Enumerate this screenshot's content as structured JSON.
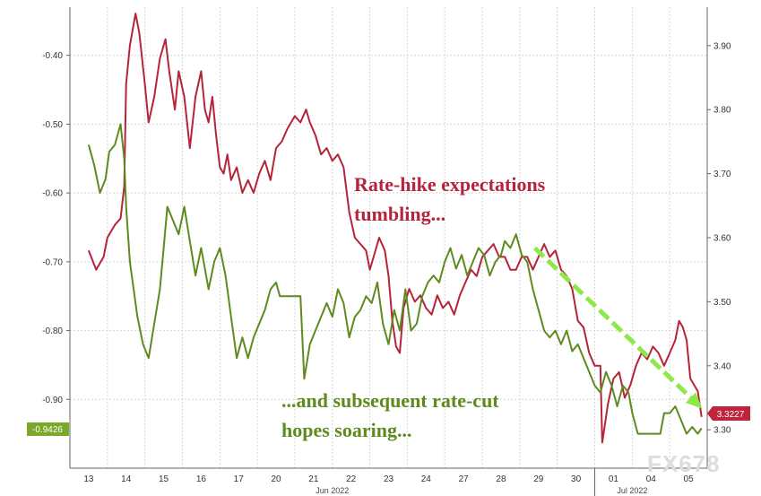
{
  "chart_data": {
    "type": "line",
    "left_axis": {
      "ticks": [
        "-0.40",
        "-0.50",
        "-0.60",
        "-0.70",
        "-0.80",
        "-0.90"
      ],
      "range": [
        -1.0,
        -0.33
      ]
    },
    "right_axis": {
      "ticks": [
        "3.90",
        "3.80",
        "3.70",
        "3.60",
        "3.50",
        "3.40",
        "3.30"
      ],
      "range": [
        3.24,
        3.96
      ]
    },
    "x_tick_labels": [
      "13",
      "14",
      "15",
      "16",
      "17",
      "20",
      "21",
      "22",
      "23",
      "24",
      "27",
      "28",
      "29",
      "30",
      "01",
      "04",
      "05"
    ],
    "month_labels": [
      "Jun 2022",
      "Jul 2022"
    ],
    "series": [
      {
        "color": "#b5243a",
        "axis": "right",
        "points": [
          [
            0,
            3.58
          ],
          [
            0.2,
            3.55
          ],
          [
            0.4,
            3.57
          ],
          [
            0.5,
            3.6
          ],
          [
            0.7,
            3.62
          ],
          [
            0.85,
            3.63
          ],
          [
            0.95,
            3.68
          ],
          [
            1.0,
            3.84
          ],
          [
            1.1,
            3.9
          ],
          [
            1.25,
            3.95
          ],
          [
            1.35,
            3.92
          ],
          [
            1.5,
            3.84
          ],
          [
            1.6,
            3.78
          ],
          [
            1.75,
            3.82
          ],
          [
            1.9,
            3.88
          ],
          [
            2.05,
            3.91
          ],
          [
            2.15,
            3.86
          ],
          [
            2.3,
            3.8
          ],
          [
            2.4,
            3.86
          ],
          [
            2.55,
            3.82
          ],
          [
            2.7,
            3.74
          ],
          [
            2.85,
            3.82
          ],
          [
            3.0,
            3.86
          ],
          [
            3.1,
            3.8
          ],
          [
            3.2,
            3.78
          ],
          [
            3.3,
            3.82
          ],
          [
            3.4,
            3.76
          ],
          [
            3.5,
            3.71
          ],
          [
            3.6,
            3.7
          ],
          [
            3.7,
            3.73
          ],
          [
            3.8,
            3.69
          ],
          [
            3.95,
            3.71
          ],
          [
            4.1,
            3.67
          ],
          [
            4.25,
            3.69
          ],
          [
            4.4,
            3.67
          ],
          [
            4.55,
            3.7
          ],
          [
            4.7,
            3.72
          ],
          [
            4.85,
            3.69
          ],
          [
            5.0,
            3.74
          ],
          [
            5.15,
            3.75
          ],
          [
            5.3,
            3.77
          ],
          [
            5.5,
            3.79
          ],
          [
            5.65,
            3.78
          ],
          [
            5.8,
            3.8
          ],
          [
            5.9,
            3.78
          ],
          [
            6.05,
            3.76
          ],
          [
            6.2,
            3.73
          ],
          [
            6.35,
            3.74
          ],
          [
            6.5,
            3.72
          ],
          [
            6.65,
            3.73
          ],
          [
            6.8,
            3.71
          ],
          [
            6.95,
            3.64
          ],
          [
            7.1,
            3.6
          ],
          [
            7.25,
            3.59
          ],
          [
            7.4,
            3.58
          ],
          [
            7.5,
            3.55
          ],
          [
            7.6,
            3.57
          ],
          [
            7.75,
            3.6
          ],
          [
            7.9,
            3.58
          ],
          [
            8.0,
            3.54
          ],
          [
            8.1,
            3.47
          ],
          [
            8.2,
            3.43
          ],
          [
            8.3,
            3.42
          ],
          [
            8.4,
            3.49
          ],
          [
            8.55,
            3.52
          ],
          [
            8.7,
            3.5
          ],
          [
            8.85,
            3.51
          ],
          [
            9.0,
            3.49
          ],
          [
            9.15,
            3.48
          ],
          [
            9.3,
            3.51
          ],
          [
            9.45,
            3.49
          ],
          [
            9.6,
            3.5
          ],
          [
            9.75,
            3.48
          ],
          [
            9.9,
            3.51
          ],
          [
            10.05,
            3.53
          ],
          [
            10.2,
            3.55
          ],
          [
            10.35,
            3.54
          ],
          [
            10.5,
            3.57
          ],
          [
            10.65,
            3.58
          ],
          [
            10.8,
            3.59
          ],
          [
            10.95,
            3.57
          ],
          [
            11.1,
            3.57
          ],
          [
            11.25,
            3.55
          ],
          [
            11.4,
            3.55
          ],
          [
            11.55,
            3.57
          ],
          [
            11.7,
            3.57
          ],
          [
            11.85,
            3.55
          ],
          [
            12.0,
            3.57
          ],
          [
            12.15,
            3.59
          ],
          [
            12.3,
            3.57
          ],
          [
            12.45,
            3.58
          ],
          [
            12.6,
            3.55
          ],
          [
            12.75,
            3.54
          ],
          [
            12.9,
            3.52
          ],
          [
            13.05,
            3.47
          ],
          [
            13.2,
            3.46
          ],
          [
            13.35,
            3.42
          ],
          [
            13.5,
            3.4
          ],
          [
            13.65,
            3.4
          ],
          [
            13.7,
            3.28
          ],
          [
            13.85,
            3.34
          ],
          [
            14.0,
            3.38
          ],
          [
            14.15,
            3.39
          ],
          [
            14.3,
            3.35
          ],
          [
            14.45,
            3.37
          ],
          [
            14.6,
            3.4
          ],
          [
            14.75,
            3.42
          ],
          [
            14.9,
            3.41
          ],
          [
            15.05,
            3.43
          ],
          [
            15.2,
            3.42
          ],
          [
            15.35,
            3.4
          ],
          [
            15.5,
            3.42
          ],
          [
            15.65,
            3.44
          ],
          [
            15.75,
            3.47
          ],
          [
            15.85,
            3.46
          ],
          [
            15.95,
            3.44
          ],
          [
            16.05,
            3.38
          ],
          [
            16.15,
            3.37
          ],
          [
            16.25,
            3.36
          ],
          [
            16.35,
            3.32
          ]
        ]
      },
      {
        "color": "#5f8a1e",
        "axis": "left",
        "points": [
          [
            0,
            -0.53
          ],
          [
            0.15,
            -0.56
          ],
          [
            0.3,
            -0.6
          ],
          [
            0.45,
            -0.58
          ],
          [
            0.55,
            -0.54
          ],
          [
            0.7,
            -0.53
          ],
          [
            0.85,
            -0.5
          ],
          [
            0.95,
            -0.55
          ],
          [
            1.0,
            -0.62
          ],
          [
            1.1,
            -0.7
          ],
          [
            1.2,
            -0.74
          ],
          [
            1.3,
            -0.78
          ],
          [
            1.45,
            -0.82
          ],
          [
            1.6,
            -0.84
          ],
          [
            1.75,
            -0.79
          ],
          [
            1.9,
            -0.74
          ],
          [
            2.0,
            -0.68
          ],
          [
            2.1,
            -0.62
          ],
          [
            2.25,
            -0.64
          ],
          [
            2.4,
            -0.66
          ],
          [
            2.55,
            -0.62
          ],
          [
            2.7,
            -0.67
          ],
          [
            2.85,
            -0.72
          ],
          [
            3.0,
            -0.68
          ],
          [
            3.1,
            -0.71
          ],
          [
            3.2,
            -0.74
          ],
          [
            3.35,
            -0.7
          ],
          [
            3.5,
            -0.68
          ],
          [
            3.65,
            -0.72
          ],
          [
            3.8,
            -0.78
          ],
          [
            3.95,
            -0.84
          ],
          [
            4.1,
            -0.81
          ],
          [
            4.25,
            -0.84
          ],
          [
            4.4,
            -0.81
          ],
          [
            4.55,
            -0.79
          ],
          [
            4.7,
            -0.77
          ],
          [
            4.85,
            -0.74
          ],
          [
            5.0,
            -0.73
          ],
          [
            5.1,
            -0.75
          ],
          [
            5.3,
            -0.75
          ],
          [
            5.5,
            -0.75
          ],
          [
            5.65,
            -0.75
          ],
          [
            5.75,
            -0.87
          ],
          [
            5.9,
            -0.82
          ],
          [
            6.05,
            -0.8
          ],
          [
            6.2,
            -0.78
          ],
          [
            6.35,
            -0.76
          ],
          [
            6.5,
            -0.78
          ],
          [
            6.65,
            -0.74
          ],
          [
            6.8,
            -0.76
          ],
          [
            6.95,
            -0.81
          ],
          [
            7.1,
            -0.78
          ],
          [
            7.25,
            -0.77
          ],
          [
            7.4,
            -0.75
          ],
          [
            7.55,
            -0.76
          ],
          [
            7.7,
            -0.73
          ],
          [
            7.85,
            -0.79
          ],
          [
            8.0,
            -0.82
          ],
          [
            8.15,
            -0.77
          ],
          [
            8.3,
            -0.8
          ],
          [
            8.45,
            -0.74
          ],
          [
            8.6,
            -0.8
          ],
          [
            8.75,
            -0.79
          ],
          [
            8.9,
            -0.75
          ],
          [
            9.05,
            -0.73
          ],
          [
            9.2,
            -0.72
          ],
          [
            9.35,
            -0.73
          ],
          [
            9.5,
            -0.7
          ],
          [
            9.65,
            -0.68
          ],
          [
            9.8,
            -0.71
          ],
          [
            9.95,
            -0.69
          ],
          [
            10.1,
            -0.72
          ],
          [
            10.25,
            -0.7
          ],
          [
            10.4,
            -0.68
          ],
          [
            10.55,
            -0.69
          ],
          [
            10.7,
            -0.72
          ],
          [
            10.85,
            -0.7
          ],
          [
            11.0,
            -0.69
          ],
          [
            11.1,
            -0.67
          ],
          [
            11.25,
            -0.68
          ],
          [
            11.4,
            -0.66
          ],
          [
            11.55,
            -0.69
          ],
          [
            11.7,
            -0.7
          ],
          [
            11.85,
            -0.74
          ],
          [
            12.0,
            -0.77
          ],
          [
            12.15,
            -0.8
          ],
          [
            12.3,
            -0.81
          ],
          [
            12.45,
            -0.8
          ],
          [
            12.6,
            -0.82
          ],
          [
            12.75,
            -0.8
          ],
          [
            12.9,
            -0.83
          ],
          [
            13.05,
            -0.82
          ],
          [
            13.2,
            -0.84
          ],
          [
            13.35,
            -0.86
          ],
          [
            13.5,
            -0.88
          ],
          [
            13.65,
            -0.89
          ],
          [
            13.8,
            -0.86
          ],
          [
            13.95,
            -0.88
          ],
          [
            14.1,
            -0.91
          ],
          [
            14.25,
            -0.88
          ],
          [
            14.4,
            -0.89
          ],
          [
            14.5,
            -0.92
          ],
          [
            14.65,
            -0.95
          ],
          [
            14.8,
            -0.95
          ],
          [
            14.95,
            -0.95
          ],
          [
            15.1,
            -0.95
          ],
          [
            15.25,
            -0.95
          ],
          [
            15.35,
            -0.92
          ],
          [
            15.5,
            -0.92
          ],
          [
            15.65,
            -0.91
          ],
          [
            15.8,
            -0.93
          ],
          [
            15.95,
            -0.95
          ],
          [
            16.1,
            -0.94
          ],
          [
            16.25,
            -0.95
          ],
          [
            16.35,
            -0.942
          ]
        ]
      }
    ],
    "trend_line": {
      "color": "#8ee84a",
      "from": [
        11.9,
        -0.68
      ],
      "to": [
        16.3,
        -0.91
      ]
    },
    "annotations": [
      {
        "lines": [
          "Rate-hike expectations",
          "tumbling..."
        ],
        "color": "#b5243a"
      },
      {
        "lines": [
          "...and subsequent rate-cut",
          "hopes soaring..."
        ],
        "color": "#5f8a1e"
      }
    ],
    "last_value_badges": {
      "left": {
        "text": "-0.9426",
        "color": "#7aa82a"
      },
      "right": {
        "text": "3.3227",
        "color": "#c0243d"
      }
    },
    "grid": true
  },
  "watermark": "FX678"
}
